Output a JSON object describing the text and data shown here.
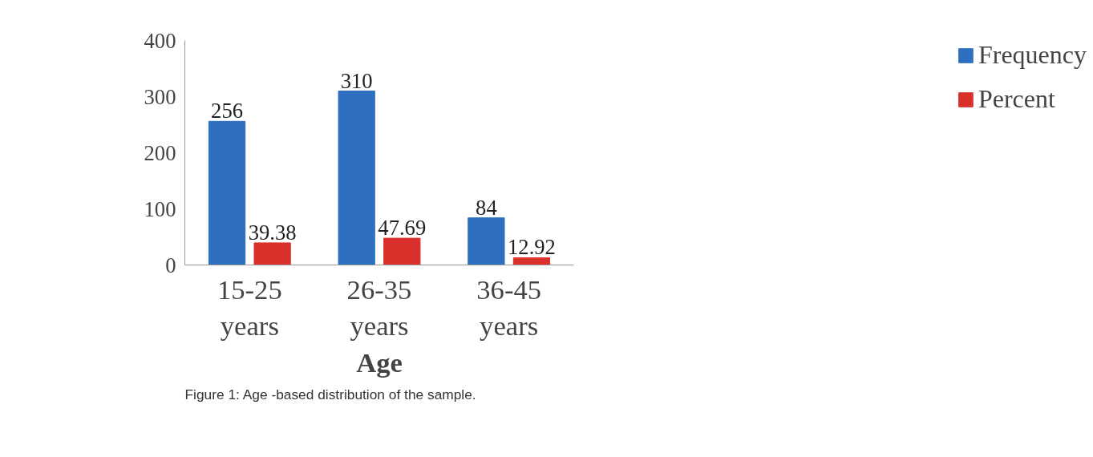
{
  "chart_data": {
    "type": "bar",
    "categories": [
      "15-25 years",
      "26-35 years",
      "36-45 years"
    ],
    "series": [
      {
        "name": "Frequency",
        "color": "#2e6fc0",
        "values": [
          256,
          310,
          84
        ]
      },
      {
        "name": "Percent",
        "color": "#d9302c",
        "values": [
          39.38,
          47.69,
          12.92
        ]
      }
    ],
    "xlabel": "Age",
    "ylim": [
      0,
      400
    ],
    "yticks": [
      0,
      100,
      200,
      300,
      400
    ],
    "data_labels": true,
    "grid": false,
    "legend": "right",
    "annotations": [
      "Figure 1: Age -based distribution of the sample."
    ]
  }
}
